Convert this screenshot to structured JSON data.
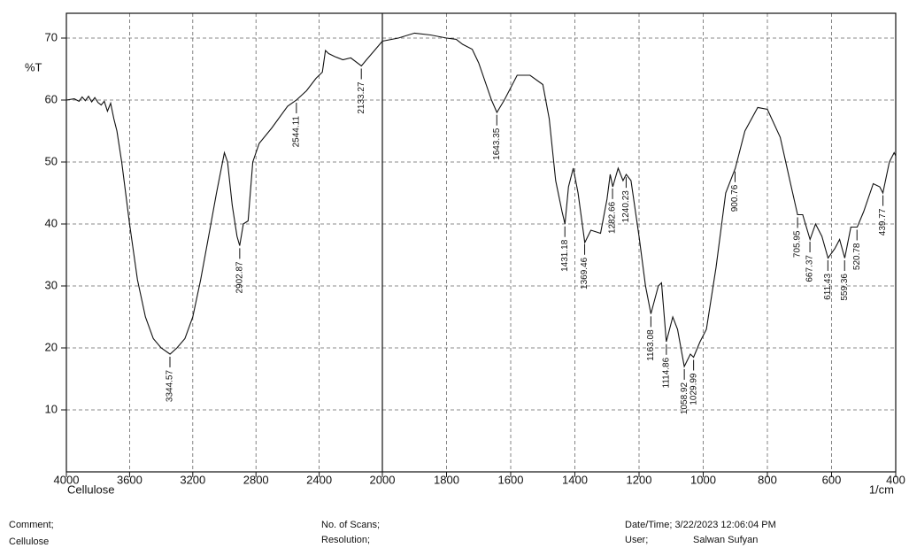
{
  "chart_data": {
    "type": "line",
    "y_axis_label": "%T",
    "x_axis_label": "1/cm",
    "sample_name": "Cellulose",
    "xlim": [
      4000,
      400
    ],
    "x_scale_break": 2000,
    "ylim": [
      0,
      74
    ],
    "xticks": [
      4000,
      3600,
      3200,
      2800,
      2400,
      2000,
      1800,
      1600,
      1400,
      1200,
      1000,
      800,
      600,
      400
    ],
    "yticks": [
      10,
      20,
      30,
      40,
      50,
      60,
      70
    ],
    "grid": true,
    "series": [
      {
        "color": "#111111",
        "x": [
          4000,
          3950,
          3920,
          3900,
          3880,
          3860,
          3840,
          3820,
          3800,
          3780,
          3760,
          3740,
          3720,
          3700,
          3680,
          3650,
          3600,
          3550,
          3500,
          3450,
          3400,
          3344,
          3300,
          3250,
          3200,
          3150,
          3100,
          3050,
          3000,
          2980,
          2950,
          2920,
          2903,
          2880,
          2850,
          2820,
          2780,
          2700,
          2600,
          2544,
          2480,
          2420,
          2380,
          2360,
          2340,
          2300,
          2250,
          2200,
          2133,
          2100,
          2050,
          2000,
          1950,
          1900,
          1850,
          1800,
          1770,
          1750,
          1720,
          1700,
          1660,
          1643,
          1620,
          1580,
          1540,
          1500,
          1480,
          1460,
          1440,
          1431,
          1420,
          1405,
          1390,
          1369,
          1350,
          1320,
          1300,
          1290,
          1282,
          1265,
          1250,
          1240,
          1225,
          1200,
          1180,
          1163,
          1140,
          1130,
          1115,
          1095,
          1080,
          1059,
          1040,
          1030,
          1010,
          990,
          960,
          930,
          900,
          870,
          830,
          800,
          760,
          730,
          706,
          690,
          667,
          650,
          630,
          611,
          590,
          575,
          559,
          540,
          520,
          500,
          470,
          450,
          440,
          420,
          405,
          400
        ],
        "values": [
          60,
          60.2,
          59.8,
          60.5,
          59.9,
          60.6,
          59.7,
          60.4,
          59.6,
          59.2,
          59.8,
          58.2,
          59.5,
          57,
          55,
          50,
          40,
          31,
          25,
          21.5,
          20,
          19,
          20,
          21.5,
          25,
          31,
          38,
          45,
          51.5,
          50,
          43,
          38,
          36.5,
          40,
          40.5,
          50,
          53,
          55.5,
          59,
          60,
          61.5,
          63.5,
          64.5,
          68,
          67.5,
          67,
          66.5,
          66.8,
          65.5,
          66.5,
          68,
          69.5,
          70,
          70.8,
          70.5,
          70,
          69.8,
          69,
          68.2,
          66,
          60,
          58,
          60,
          64,
          64,
          62.5,
          57,
          47,
          42,
          40,
          46,
          49,
          45,
          37,
          39,
          38.5,
          44,
          48,
          46,
          49,
          47,
          48,
          47,
          38,
          30,
          25.5,
          30,
          30.5,
          21,
          25,
          23,
          17,
          19,
          18.5,
          21,
          23,
          33,
          45,
          49,
          55,
          58.8,
          58.5,
          54,
          47,
          41.5,
          41.5,
          37.5,
          40,
          38,
          34.5,
          36,
          37.5,
          34.5,
          39.5,
          39.5,
          42,
          46.5,
          46,
          45,
          50,
          51.5,
          51
        ]
      }
    ],
    "peaks": [
      3344.57,
      2902.87,
      2544.11,
      2133.27,
      1643.35,
      1431.18,
      1369.46,
      1282.66,
      1240.23,
      1163.08,
      1114.86,
      1058.92,
      1029.99,
      900.76,
      705.95,
      667.37,
      611.43,
      559.36,
      520.78,
      439.77
    ]
  },
  "footer": {
    "comment_label": "Comment;",
    "comment": "Cellulose",
    "scans_label": "No. of Scans;",
    "resolution_label": "Resolution;",
    "datetime": "Date/Time; 3/22/2023 12:06:04 PM",
    "user_label": "User;",
    "user": "Salwan Sufyan"
  }
}
